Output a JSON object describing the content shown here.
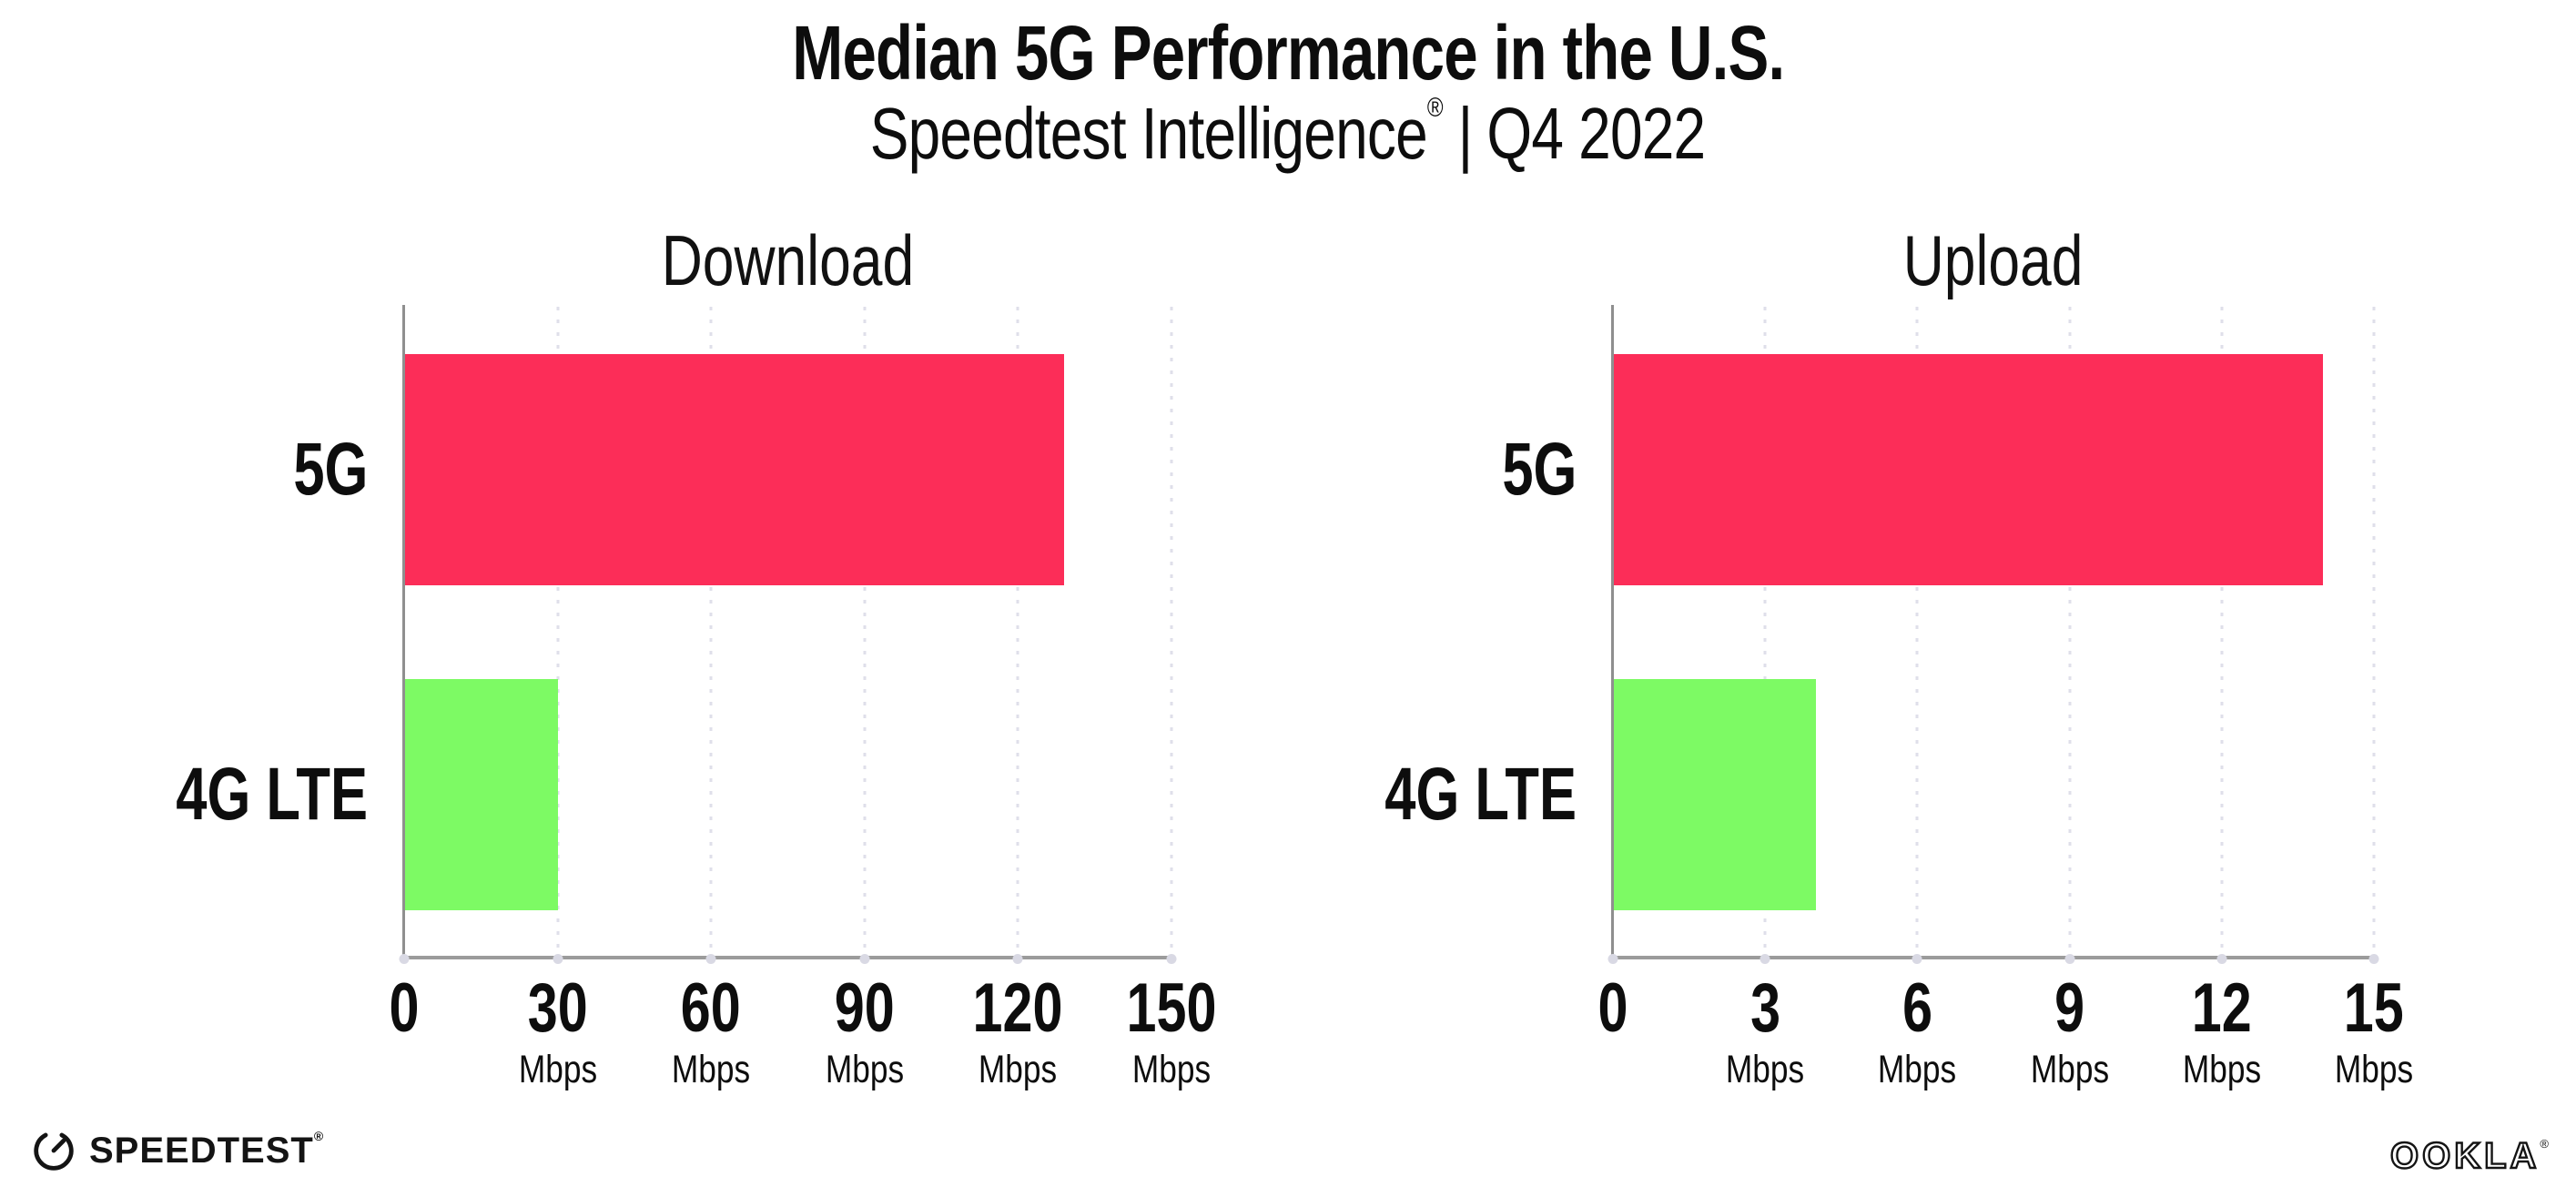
{
  "header": {
    "title": "Median 5G Performance in the U.S.",
    "subtitle_brand": "Speedtest Intelligence",
    "subtitle_reg": "®",
    "subtitle_separator": "|",
    "subtitle_period": "Q4 2022"
  },
  "chart_data": [
    {
      "type": "bar",
      "orientation": "horizontal",
      "title": "Download",
      "categories": [
        "5G",
        "4G LTE"
      ],
      "values": [
        129,
        30
      ],
      "unit": "Mbps",
      "xlim": [
        0,
        150
      ],
      "xticks": [
        0,
        30,
        60,
        90,
        120,
        150
      ],
      "xtick_unit_label": "Mbps",
      "bar_colors": [
        "#FC2D58",
        "#7DFA64"
      ],
      "grid": "dotted-vertical",
      "legend": "none"
    },
    {
      "type": "bar",
      "orientation": "horizontal",
      "title": "Upload",
      "categories": [
        "5G",
        "4G LTE"
      ],
      "values": [
        14,
        4
      ],
      "unit": "Mbps",
      "xlim": [
        0,
        15
      ],
      "xticks": [
        0,
        3,
        6,
        9,
        12,
        15
      ],
      "xtick_unit_label": "Mbps",
      "bar_colors": [
        "#FC2D58",
        "#7DFA64"
      ],
      "grid": "dotted-vertical",
      "legend": "none"
    }
  ],
  "colors": {
    "bar_5g": "#FC2D58",
    "bar_4g_lte": "#7DFA64",
    "axis_line": "#9B9B9B",
    "gridline": "#DFDFEA",
    "text": "#0D0D0D",
    "background": "#FFFFFF"
  },
  "footer": {
    "speedtest_label": "SPEEDTEST",
    "speedtest_reg": "®",
    "ookla_label": "OOKLA",
    "ookla_reg": "®"
  }
}
